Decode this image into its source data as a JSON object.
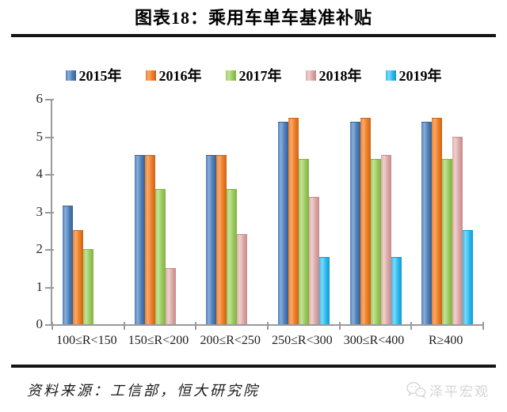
{
  "title": "图表18：乘用车单车基准补贴",
  "chart_data": {
    "type": "bar",
    "categories": [
      "100≤R<150",
      "150≤R<200",
      "200≤R<250",
      "250≤R<300",
      "300≤R<400",
      "R≥400"
    ],
    "series": [
      {
        "name": "2015年",
        "color": "#4f81bd",
        "light": "#8aaed8",
        "dark": "#38618e",
        "values": [
          3.15,
          4.5,
          4.5,
          5.4,
          5.4,
          5.4
        ]
      },
      {
        "name": "2016年",
        "color": "#f07f2a",
        "light": "#f8aa6b",
        "dark": "#cc6315",
        "values": [
          2.5,
          4.5,
          4.5,
          5.5,
          5.5,
          5.5
        ]
      },
      {
        "name": "2017年",
        "color": "#9ccb60",
        "light": "#c4e29b",
        "dark": "#7fb33f",
        "values": [
          2.0,
          3.6,
          3.6,
          4.4,
          4.4,
          4.4
        ]
      },
      {
        "name": "2018年",
        "color": "#ddaaa9",
        "light": "#eed1d0",
        "dark": "#c68a89",
        "values": [
          0,
          1.5,
          2.4,
          3.4,
          4.5,
          5.0
        ]
      },
      {
        "name": "2019年",
        "color": "#30bcf0",
        "light": "#82d7f7",
        "dark": "#0f9ad0",
        "values": [
          0,
          0,
          0,
          1.8,
          1.8,
          2.5
        ]
      }
    ],
    "title": "图表18：乘用车单车基准补贴",
    "xlabel": "",
    "ylabel": "",
    "ylim": [
      0,
      6
    ],
    "yticks": [
      0,
      1,
      2,
      3,
      4,
      5,
      6
    ],
    "grid": "off",
    "legend_position": "top"
  },
  "footer": {
    "source": "资料来源：工信部，恒大研究院",
    "watermark": "泽平宏观",
    "watermark_icon": "wechat-icon"
  }
}
